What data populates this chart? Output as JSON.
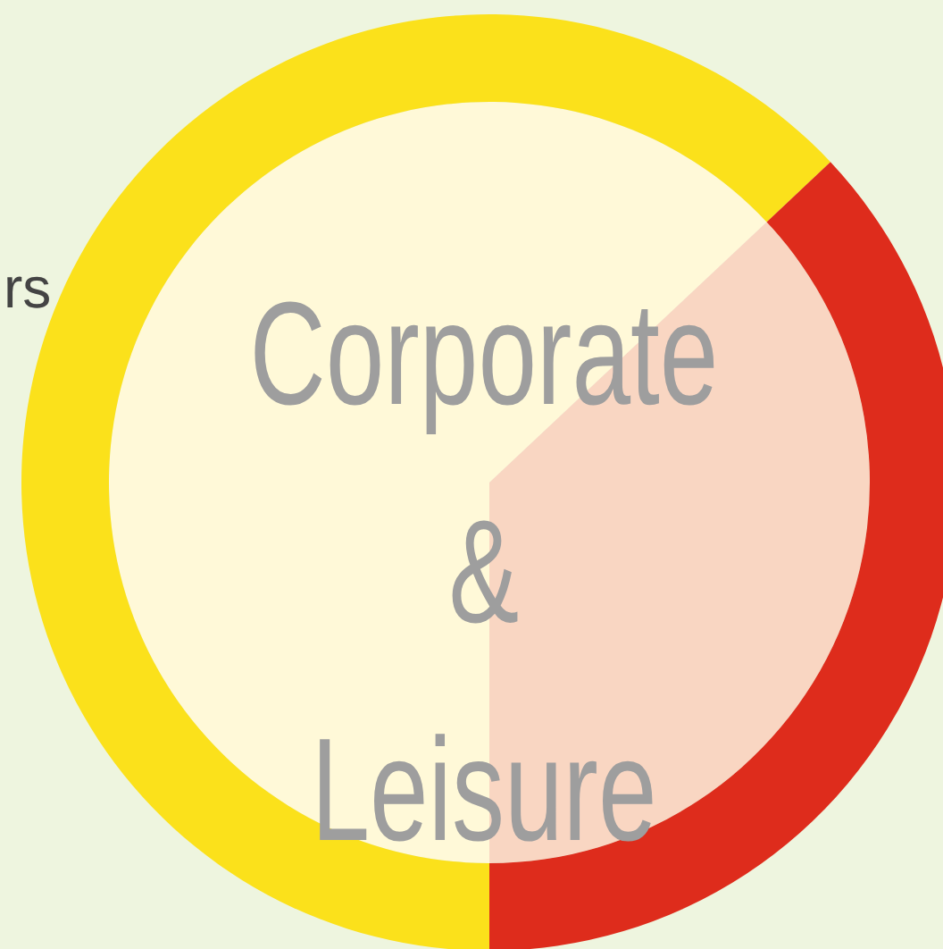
{
  "chart_data": {
    "type": "donut",
    "title": "Corporate & Leisure",
    "categories": [
      null,
      null
    ],
    "values": [
      63,
      37
    ],
    "colors": [
      "#fbe11b",
      "#de2c1c"
    ],
    "annotations": [
      "rs"
    ]
  }
}
